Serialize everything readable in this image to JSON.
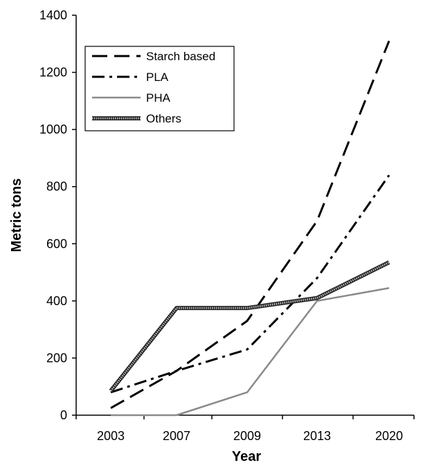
{
  "chart_data": {
    "type": "line",
    "xlabel": "Year",
    "ylabel": "Metric tons",
    "categories": [
      "2003",
      "2007",
      "2009",
      "2013",
      "2020"
    ],
    "ylim": [
      0,
      1400
    ],
    "yticks": [
      0,
      200,
      400,
      600,
      800,
      1000,
      1200,
      1400
    ],
    "grid": false,
    "legend_position": "top-left",
    "series": [
      {
        "name": "Starch based",
        "style": "long-dash",
        "color": "#000000",
        "values": [
          25,
          155,
          330,
          680,
          1310
        ]
      },
      {
        "name": "PLA",
        "style": "dash-dot",
        "color": "#000000",
        "values": [
          80,
          155,
          230,
          480,
          840
        ]
      },
      {
        "name": "PHA",
        "style": "solid-gray",
        "color": "#8a8a8a",
        "values": [
          0,
          0,
          80,
          400,
          445
        ]
      },
      {
        "name": "Others",
        "style": "textured",
        "color": "#333333",
        "values": [
          85,
          375,
          375,
          410,
          535
        ]
      }
    ]
  }
}
